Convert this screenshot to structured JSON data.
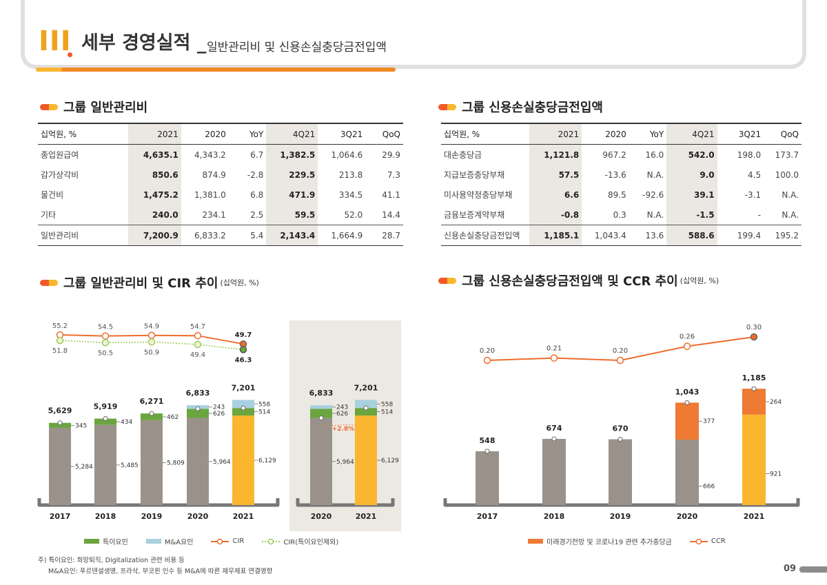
{
  "header": {
    "roman": "III",
    "title": "세부 경영실적 _",
    "subtitle": "일반관리비 및 신용손실충당금전입액"
  },
  "sec1": {
    "title": "그룹 일반관리비"
  },
  "sec2": {
    "title": "그룹 신용손실충당금전입액"
  },
  "sec3": {
    "title": "그룹 일반관리비 및 CIR 추이",
    "unit": "(십억원, %)"
  },
  "sec4": {
    "title": "그룹 신용손실충당금전입액 및 CCR 추이",
    "unit": "(십억원, %)"
  },
  "table1": {
    "headers": [
      "십억원, %",
      "2021",
      "2020",
      "YoY",
      "4Q21",
      "3Q21",
      "QoQ"
    ],
    "rows": [
      [
        "종업원급여",
        "4,635.1",
        "4,343.2",
        "6.7",
        "1,382.5",
        "1,064.6",
        "29.9"
      ],
      [
        "감가상각비",
        "850.6",
        "874.9",
        "-2.8",
        "229.5",
        "213.8",
        "7.3"
      ],
      [
        "물건비",
        "1,475.2",
        "1,381.0",
        "6.8",
        "471.9",
        "334.5",
        "41.1"
      ],
      [
        "기타",
        "240.0",
        "234.1",
        "2.5",
        "59.5",
        "52.0",
        "14.4"
      ],
      [
        "일반관리비",
        "7,200.9",
        "6,833.2",
        "5.4",
        "2,143.4",
        "1,664.9",
        "28.7"
      ]
    ]
  },
  "table2": {
    "headers": [
      "십억원, %",
      "2021",
      "2020",
      "YoY",
      "4Q21",
      "3Q21",
      "QoQ"
    ],
    "rows": [
      [
        "대손충당금",
        "1,121.8",
        "967.2",
        "16.0",
        "542.0",
        "198.0",
        "173.7"
      ],
      [
        "지급보증충당부채",
        "57.5",
        "-13.6",
        "N.A.",
        "9.0",
        "4.5",
        "100.0"
      ],
      [
        "미사용약정충당부채",
        "6.6",
        "89.5",
        "-92.6",
        "39.1",
        "-3.1",
        "N.A."
      ],
      [
        "금융보증계약부채",
        "-0.8",
        "0.3",
        "N.A.",
        "-1.5",
        "-",
        "N.A."
      ],
      [
        "신용손실충당금전입액",
        "1,185.1",
        "1,043.4",
        "13.6",
        "588.6",
        "199.4",
        "195.2"
      ]
    ]
  },
  "chart_data": [
    {
      "type": "bar",
      "categories": [
        "2017",
        "2018",
        "2019",
        "2020",
        "2021"
      ],
      "series": [
        {
          "name": "",
          "values": [
            5284,
            5485,
            5809,
            5964,
            6129
          ]
        },
        {
          "name": "특이요인",
          "values": [
            345,
            434,
            462,
            626,
            514
          ]
        },
        {
          "name": "M&A요인",
          "values": [
            0,
            0,
            0,
            243,
            558
          ]
        }
      ],
      "totals": [
        "5,629",
        "5,919",
        "6,271",
        "6,833",
        "7,201"
      ],
      "base_labels": [
        "5,284",
        "5,485",
        "5,809",
        "5,964",
        "6,129"
      ],
      "special_labels": [
        "345",
        "434",
        "462",
        "626",
        "514"
      ],
      "ma_labels": [
        "",
        "",
        "",
        "243",
        "558"
      ],
      "lines": [
        {
          "name": "CIR",
          "values": [
            55.2,
            54.5,
            54.9,
            54.7,
            49.7
          ],
          "labels": [
            "55.2",
            "54.5",
            "54.9",
            "54.7",
            "49.7"
          ]
        },
        {
          "name": "CIR(특이요인제외)",
          "values": [
            51.8,
            50.5,
            50.9,
            49.4,
            46.3
          ],
          "labels": [
            "51.8",
            "50.5",
            "50.9",
            "49.4",
            "46.3"
          ]
        }
      ],
      "comparison": {
        "categories": [
          "2020",
          "2021"
        ],
        "totals": [
          "6,833",
          "7,201"
        ],
        "base_labels": [
          "5,964",
          "6,129"
        ],
        "special_labels": [
          "626",
          "514"
        ],
        "ma_labels": [
          "243",
          "558"
        ],
        "growth": "+2.8%"
      },
      "colors": {
        "base": "#9a928a",
        "base2021": "#fbb62f",
        "special": "#6ba540",
        "ma": "#a9d0df",
        "cir": "#ee6c2d",
        "cir_ex": "#9ccc54"
      }
    },
    {
      "type": "bar",
      "categories": [
        "2017",
        "2018",
        "2019",
        "2020",
        "2021"
      ],
      "series": [
        {
          "name": "",
          "values": [
            548,
            674,
            670,
            666,
            921
          ]
        },
        {
          "name": "미래경기전망 및 코로나19 관련 추가충당금",
          "values": [
            0,
            0,
            0,
            377,
            264
          ]
        }
      ],
      "totals": [
        "548",
        "674",
        "670",
        "1,043",
        "1,185"
      ],
      "base_labels": [
        "",
        "",
        "",
        "666",
        "921"
      ],
      "extra_labels": [
        "",
        "",
        "",
        "377",
        "264"
      ],
      "line": {
        "name": "CCR",
        "values": [
          0.2,
          0.21,
          0.2,
          0.26,
          0.3
        ],
        "labels": [
          "0.20",
          "0.21",
          "0.20",
          "0.26",
          "0.30"
        ]
      },
      "colors": {
        "base": "#9a928a",
        "base2021": "#fbb62f",
        "extra": "#ee7a33",
        "line": "#ee6c2d"
      }
    }
  ],
  "legend1": [
    "특이요인",
    "M&A요인",
    "CIR",
    "CIR(특이요인제외)"
  ],
  "legend2": [
    "미래경기전망 및 코로나19 관련 추가충당금",
    "CCR"
  ],
  "footnote": {
    "line1": "주) 특이요인: 희망퇴직, Digitalization 관련 비용 등",
    "line2": "M&A요인: 푸르덴셜생명, 프라삭, 부코핀 인수 등 M&A에 따른 재무제표 연결영향"
  },
  "page": "09"
}
